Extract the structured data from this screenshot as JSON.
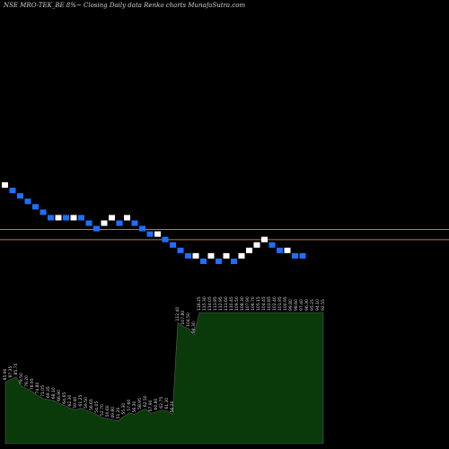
{
  "title": "NSE MRO-TEK_BE 8%~   Closing Daily data  Renko  charts MunafaSutra.com",
  "chart_data": [
    {
      "type": "renko",
      "title": "NSE MRO-TEK_BE 8%~   Closing Daily data  Renko  charts MunafaSutra.com",
      "colors": {
        "up": "#ffffff",
        "down": "#1e6fff",
        "reference_lines": "#c87533"
      },
      "reference_lines": [
        110.8,
        98.6
      ],
      "grid": false,
      "bricks": [
        {
          "dir": "up",
          "top": 167.0,
          "bottom": 160.5
        },
        {
          "dir": "down",
          "top": 160.5,
          "bottom": 154.0
        },
        {
          "dir": "down",
          "top": 154.0,
          "bottom": 147.5
        },
        {
          "dir": "down",
          "top": 147.5,
          "bottom": 141.0
        },
        {
          "dir": "down",
          "top": 141.0,
          "bottom": 134.5
        },
        {
          "dir": "down",
          "top": 134.5,
          "bottom": 128.0
        },
        {
          "dir": "down",
          "top": 128.0,
          "bottom": 121.5
        },
        {
          "dir": "up",
          "top": 128.0,
          "bottom": 121.5
        },
        {
          "dir": "down",
          "top": 128.0,
          "bottom": 121.5
        },
        {
          "dir": "up",
          "top": 128.0,
          "bottom": 121.5
        },
        {
          "dir": "down",
          "top": 128.0,
          "bottom": 121.5
        },
        {
          "dir": "down",
          "top": 121.5,
          "bottom": 115.0
        },
        {
          "dir": "down",
          "top": 115.0,
          "bottom": 108.5
        },
        {
          "dir": "up",
          "top": 115.0,
          "bottom": 121.5
        },
        {
          "dir": "up",
          "top": 121.5,
          "bottom": 128.0
        },
        {
          "dir": "down",
          "top": 121.5,
          "bottom": 115.0
        },
        {
          "dir": "up",
          "top": 121.5,
          "bottom": 128.0
        },
        {
          "dir": "down",
          "top": 121.5,
          "bottom": 115.0
        },
        {
          "dir": "down",
          "top": 115.0,
          "bottom": 108.5
        },
        {
          "dir": "down",
          "top": 108.5,
          "bottom": 102.0
        },
        {
          "dir": "up",
          "top": 108.5,
          "bottom": 102.0
        },
        {
          "dir": "down",
          "top": 102.0,
          "bottom": 95.5
        },
        {
          "dir": "down",
          "top": 95.5,
          "bottom": 89.0
        },
        {
          "dir": "down",
          "top": 89.0,
          "bottom": 82.5
        },
        {
          "dir": "down",
          "top": 82.5,
          "bottom": 76.0
        },
        {
          "dir": "up",
          "top": 82.5,
          "bottom": 76.0
        },
        {
          "dir": "down",
          "top": 76.0,
          "bottom": 69.5
        },
        {
          "dir": "up",
          "top": 82.5,
          "bottom": 76.0
        },
        {
          "dir": "down",
          "top": 76.0,
          "bottom": 69.5
        },
        {
          "dir": "up",
          "top": 82.5,
          "bottom": 76.0
        },
        {
          "dir": "down",
          "top": 76.0,
          "bottom": 69.5
        },
        {
          "dir": "up",
          "top": 82.5,
          "bottom": 76.0
        },
        {
          "dir": "up",
          "top": 89.0,
          "bottom": 82.5
        },
        {
          "dir": "up",
          "top": 95.5,
          "bottom": 89.0
        },
        {
          "dir": "up",
          "top": 102.0,
          "bottom": 95.5
        },
        {
          "dir": "down",
          "top": 95.5,
          "bottom": 89.0
        },
        {
          "dir": "down",
          "top": 89.0,
          "bottom": 82.5
        },
        {
          "dir": "up",
          "top": 89.0,
          "bottom": 82.5
        },
        {
          "dir": "down",
          "top": 82.5,
          "bottom": 76.0
        },
        {
          "dir": "down",
          "top": 82.5,
          "bottom": 76.0
        }
      ],
      "volume_area": {
        "values": [
          68.6,
          71.5,
          74.5,
          64.0,
          61.1,
          57.7,
          53.5,
          50.1,
          48.9,
          47.7,
          45.1,
          42.3,
          39.5,
          37.3,
          39.5,
          37.0,
          34.9,
          32.3,
          29.0,
          27.7,
          26.2,
          25.6,
          30.4,
          34.3,
          32.5,
          36.1,
          38.7,
          33.6,
          35.5,
          37.3,
          36.4,
          32.6,
          134.5,
          130.5,
          128.1,
          120.9,
          146.0,
          146.0,
          146.0,
          146.0,
          146.0,
          146.0,
          146.0,
          146.0,
          146.0,
          146.0,
          146.0,
          146.0,
          146.0,
          146.0,
          146.0,
          146.0,
          146.0,
          146.0,
          146.0,
          146.0,
          146.0,
          146.0,
          146.0,
          146.0
        ],
        "labels": [
          "85.90",
          "87.35",
          "85.75",
          "79.50",
          "78.20",
          "76.95",
          "74.80",
          "71.05",
          "69.35",
          "68.10",
          "66.90",
          "64.65",
          "62.30",
          "59.40",
          "61.25",
          "59.50",
          "56.65",
          "54.05",
          "52.70",
          "50.60",
          "49.80",
          "51.20",
          "55.30",
          "57.60",
          "56.30",
          "58.95",
          "62.50",
          "57.90",
          "60.80",
          "62.75",
          "61.30",
          "56.20",
          "112.40",
          "107.80",
          "104.50",
          "98.30",
          "116.25",
          "115.30",
          "114.05",
          "113.85",
          "112.95",
          "111.60",
          "110.45",
          "109.50",
          "108.30",
          "107.90",
          "106.70",
          "105.15",
          "104.45",
          "103.85",
          "102.40",
          "101.95",
          "100.95",
          "99.80",
          "98.60",
          "97.40",
          "96.30",
          "95.25",
          "94.10",
          "92.55"
        ],
        "fill": "#0a3a0a",
        "stroke": "#5a5a5a"
      }
    }
  ]
}
